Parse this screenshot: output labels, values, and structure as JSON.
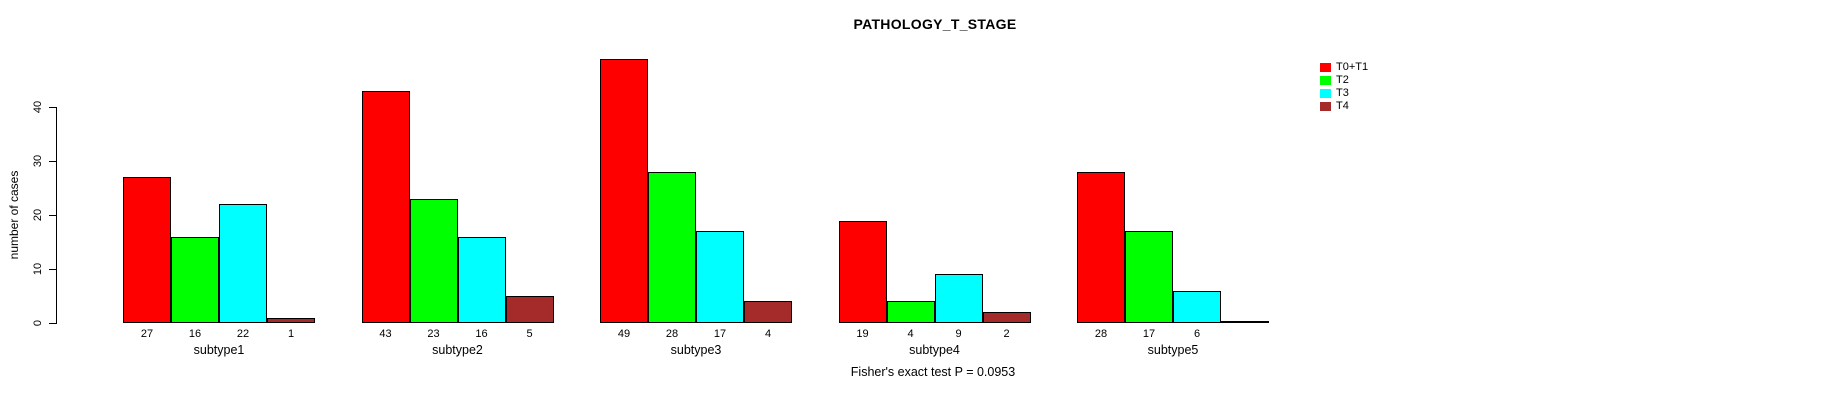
{
  "title": "PATHOLOGY_T_STAGE",
  "footer_note": "Fisher's exact test P = 0.0953",
  "chart_data": {
    "type": "bar",
    "title": "PATHOLOGY_T_STAGE",
    "ylabel": "number of cases",
    "xlabel": "",
    "ylim": [
      0,
      40
    ],
    "yticks": [
      0,
      10,
      20,
      30,
      40
    ],
    "grid": false,
    "legend_position": "right",
    "bar_border_color": "#000000",
    "categories": [
      "subtype1",
      "subtype2",
      "subtype3",
      "subtype4",
      "subtype5"
    ],
    "series": [
      {
        "name": "T0+T1",
        "color": "#FF0000",
        "values": [
          27,
          43,
          49,
          19,
          28
        ]
      },
      {
        "name": "T2",
        "color": "#00FF00",
        "values": [
          16,
          23,
          28,
          4,
          17
        ]
      },
      {
        "name": "T3",
        "color": "#00FFFF",
        "values": [
          22,
          16,
          17,
          9,
          6
        ]
      },
      {
        "name": "T4",
        "color": "#A52A2A",
        "values": [
          1,
          5,
          4,
          2,
          0
        ]
      }
    ],
    "annotation": "Fisher's exact test P = 0.0953"
  }
}
